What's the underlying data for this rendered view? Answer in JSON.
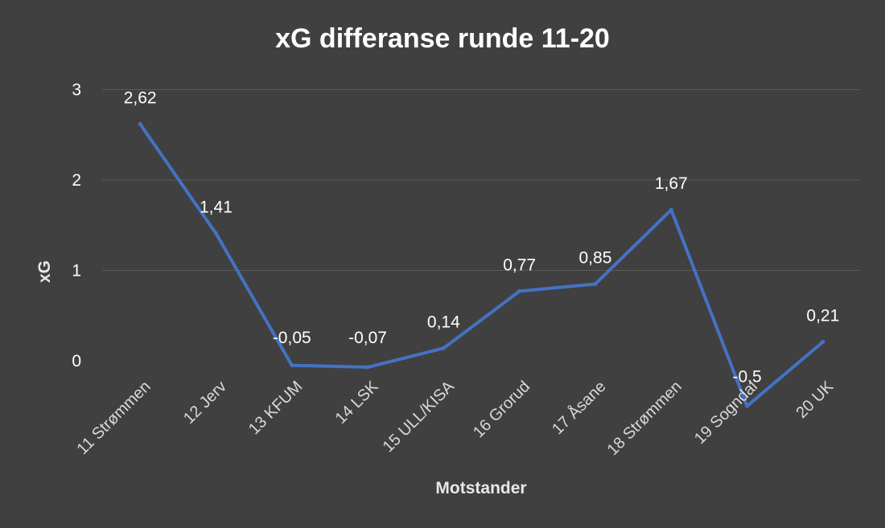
{
  "chart_data": {
    "type": "line",
    "title": "xG differanse runde 11-20",
    "xlabel": "Motstander",
    "ylabel": "xG",
    "categories": [
      "11 Strømmen",
      "12 Jerv",
      "13 KFUM",
      "14 LSK",
      "15 ULL/KISA",
      "16 Grorud",
      "17 Åsane",
      "18 Strømmen",
      "19 Sogndal",
      "20 UK"
    ],
    "series": [
      {
        "values": [
          2.62,
          1.41,
          -0.05,
          -0.07,
          0.14,
          0.77,
          0.85,
          1.67,
          -0.5,
          0.21
        ],
        "data_labels": [
          "2,62",
          "1,41",
          "-0,05",
          "-0,07",
          "0,14",
          "0,77",
          "0,85",
          "1,67",
          "-0,5",
          "0,21"
        ]
      }
    ],
    "yticks": [
      0,
      1,
      2,
      3
    ],
    "ytick_labels": [
      "0",
      "1",
      "2",
      "3"
    ],
    "ylim": [
      -0.5,
      3
    ],
    "grid": true,
    "legend": "none",
    "colors": {
      "background": "#404040",
      "line": "#4472C4",
      "grid": "#5a5a5a"
    }
  }
}
